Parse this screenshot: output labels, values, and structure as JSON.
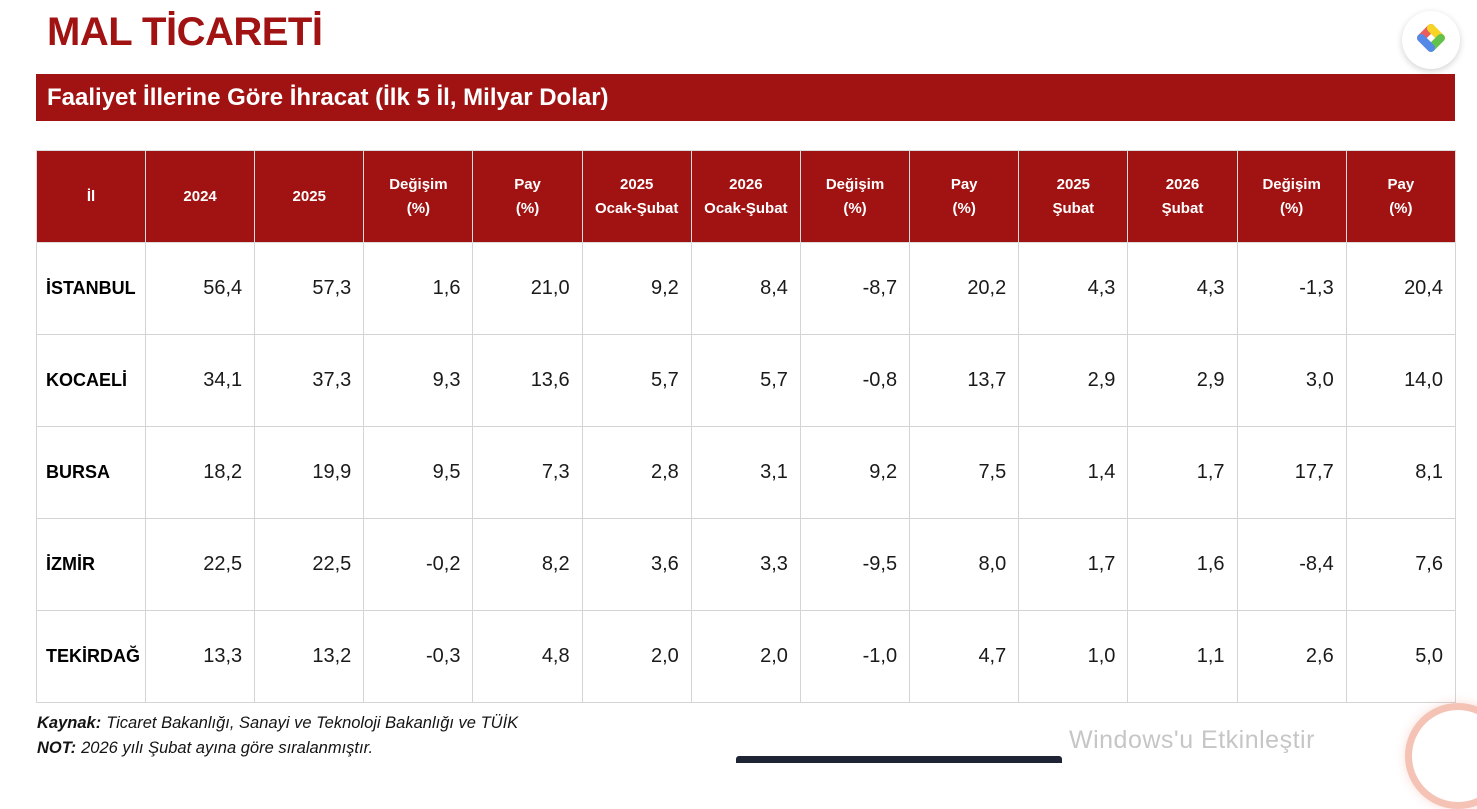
{
  "page": {
    "title": "MAL TİCARETİ",
    "banner_title": "Faaliyet İllerine Göre İhracat (İlk 5 İl, Milyar Dolar)"
  },
  "table": {
    "columns": [
      "İl",
      "2024",
      "2025",
      "Değişim\n(%)",
      "Pay\n(%)",
      "2025\nOcak-Şubat",
      "2026\nOcak-Şubat",
      "Değişim\n(%)",
      "Pay\n(%)",
      "2025\nŞubat",
      "2026\nŞubat",
      "Değişim\n(%)",
      "Pay\n(%)"
    ],
    "rows": [
      {
        "il": "İSTANBUL",
        "values": [
          "56,4",
          "57,3",
          "1,6",
          "21,0",
          "9,2",
          "8,4",
          "-8,7",
          "20,2",
          "4,3",
          "4,3",
          "-1,3",
          "20,4"
        ]
      },
      {
        "il": "KOCAELİ",
        "values": [
          "34,1",
          "37,3",
          "9,3",
          "13,6",
          "5,7",
          "5,7",
          "-0,8",
          "13,7",
          "2,9",
          "2,9",
          "3,0",
          "14,0"
        ]
      },
      {
        "il": "BURSA",
        "values": [
          "18,2",
          "19,9",
          "9,5",
          "7,3",
          "2,8",
          "3,1",
          "9,2",
          "7,5",
          "1,4",
          "1,7",
          "17,7",
          "8,1"
        ]
      },
      {
        "il": "İZMİR",
        "values": [
          "22,5",
          "22,5",
          "-0,2",
          "8,2",
          "3,6",
          "3,3",
          "-9,5",
          "8,0",
          "1,7",
          "1,6",
          "-8,4",
          "7,6"
        ]
      },
      {
        "il": "TEKİRDAĞ",
        "values": [
          "13,3",
          "13,2",
          "-0,3",
          "4,8",
          "2,0",
          "2,0",
          "-1,0",
          "4,7",
          "1,0",
          "1,1",
          "2,6",
          "5,0"
        ]
      }
    ]
  },
  "footer": {
    "source_label": "Kaynak:",
    "source_text": "Ticaret Bakanlığı, Sanayi ve Teknoloji Bakanlığı ve TÜİK",
    "note_label": "NOT:",
    "note_text": "2026 yılı Şubat ayına göre sıralanmıştır."
  },
  "watermark": {
    "text": "Windows'u Etkinleştir"
  },
  "colors": {
    "accent_red": "#A11212",
    "header_text": "#FFFFFF",
    "grid_line": "#D4D4D4",
    "watermark_gray": "#C6C6C6",
    "bottom_bar": "#1E2433",
    "logo_red": "#E85D5D",
    "logo_yellow": "#F6D426",
    "logo_green": "#63C24B",
    "logo_blue": "#5589E8"
  }
}
